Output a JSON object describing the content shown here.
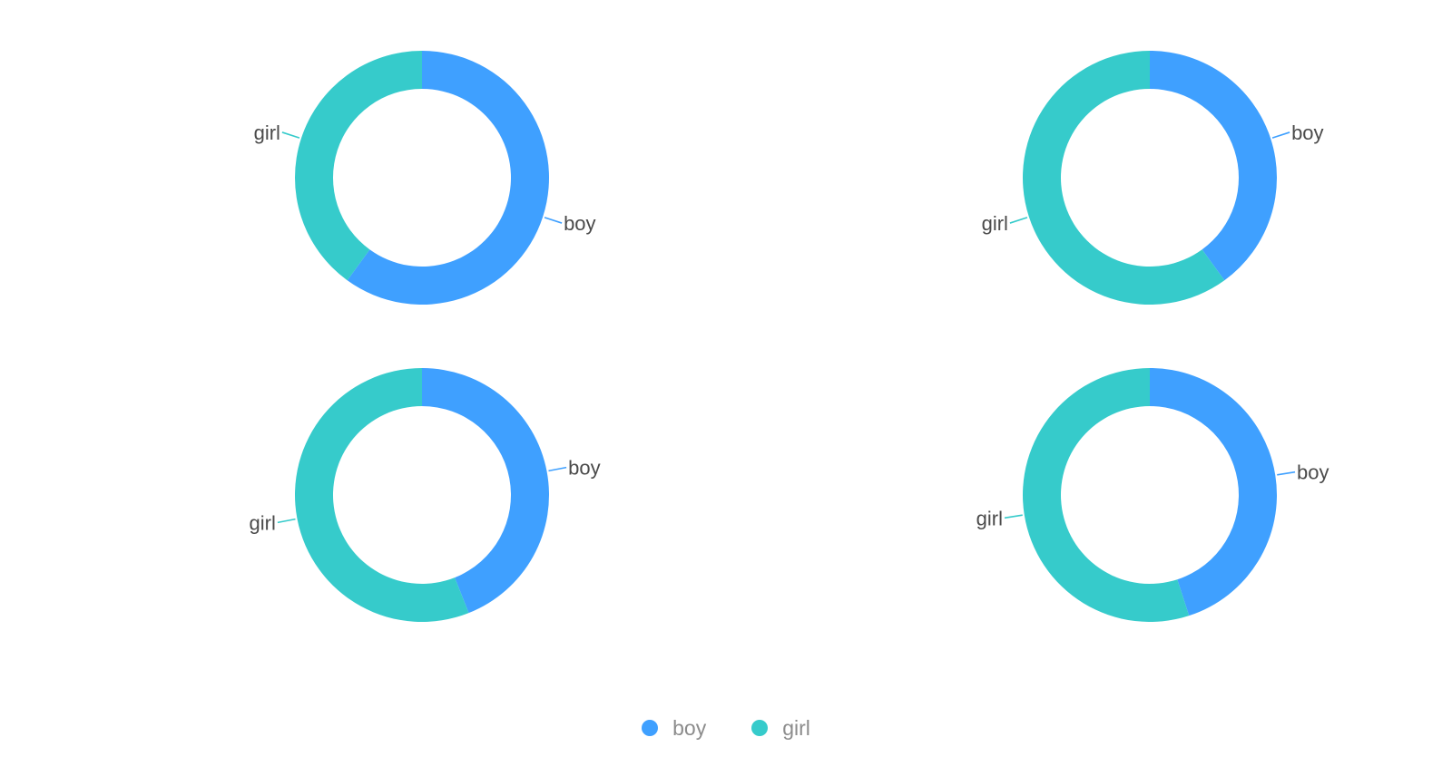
{
  "colors": {
    "boy": "#3fa0ff",
    "girl": "#36cbcb"
  },
  "chart_data": [
    {
      "type": "pie",
      "style": "donut",
      "categories": [
        "boy",
        "girl"
      ],
      "values": [
        60,
        40
      ]
    },
    {
      "type": "pie",
      "style": "donut",
      "categories": [
        "boy",
        "girl"
      ],
      "values": [
        40,
        60
      ]
    },
    {
      "type": "pie",
      "style": "donut",
      "categories": [
        "boy",
        "girl"
      ],
      "values": [
        44,
        56
      ]
    },
    {
      "type": "pie",
      "style": "donut",
      "categories": [
        "boy",
        "girl"
      ],
      "values": [
        45,
        55
      ]
    }
  ],
  "legend": {
    "position": "bottom-center",
    "items": [
      {
        "label": "boy",
        "color": "#3fa0ff"
      },
      {
        "label": "girl",
        "color": "#36cbcb"
      }
    ]
  }
}
